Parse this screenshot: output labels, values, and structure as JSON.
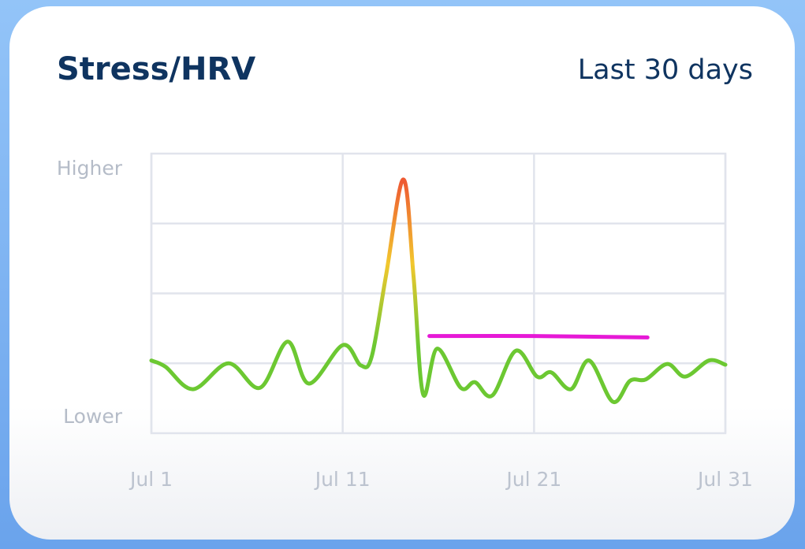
{
  "chart_data": {
    "type": "line",
    "title": "Stress/HRV",
    "subtitle": "Last 30 days",
    "xlim": [
      1,
      31
    ],
    "xticks": [
      {
        "value": 1,
        "label": "Jul 1"
      },
      {
        "value": 11,
        "label": "Jul 11"
      },
      {
        "value": 21,
        "label": "Jul 21"
      },
      {
        "value": 31,
        "label": "Jul 31"
      }
    ],
    "ylim": [
      0,
      4
    ],
    "yticks": [
      {
        "value": 4,
        "label": "Higher"
      },
      {
        "value": 0,
        "label": "Lower"
      }
    ],
    "grid": true,
    "series": [
      {
        "color": "#6cc832",
        "gradient": [
          "#6cc832",
          "#f2c72e",
          "#ee5a32"
        ],
        "x": [
          1,
          1.74,
          3.18,
          5.03,
          6.68,
          8.12,
          9.23,
          11,
          11.95,
          12.52,
          13.26,
          14.17,
          14.7,
          15.2,
          15.94,
          17.17,
          17.91,
          18.82,
          20.05,
          21.16,
          21.9,
          22.93,
          23.88,
          25.12,
          26.02,
          26.84,
          27.96,
          28.9,
          30.14,
          31
        ],
        "values": [
          1.04,
          0.95,
          0.63,
          1.0,
          0.65,
          1.31,
          0.71,
          1.26,
          0.97,
          1.1,
          2.25,
          3.63,
          2.25,
          0.56,
          1.21,
          0.65,
          0.73,
          0.54,
          1.18,
          0.81,
          0.87,
          0.63,
          1.04,
          0.45,
          0.75,
          0.77,
          0.99,
          0.81,
          1.04,
          0.98
        ]
      },
      {
        "color": "#e619d6",
        "x": [
          15.53,
          21,
          26.93
        ],
        "values": [
          1.39,
          1.39,
          1.37
        ]
      }
    ]
  }
}
